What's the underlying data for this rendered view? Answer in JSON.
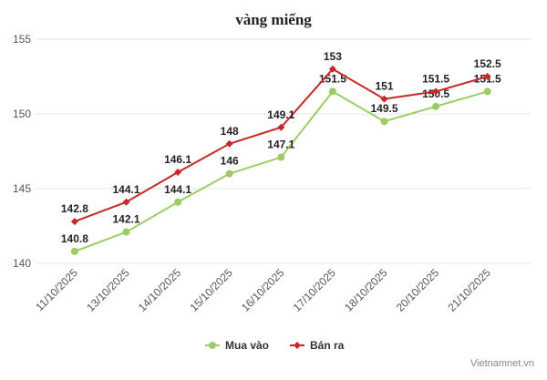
{
  "chart_data": {
    "type": "line",
    "title": "vàng miếng",
    "categories": [
      "11/10/2025",
      "13/10/2025",
      "14/10/2025",
      "15/10/2025",
      "16/10/2025",
      "17/10/2025",
      "18/10/2025",
      "20/10/2025",
      "21/10/2025"
    ],
    "series": [
      {
        "name": "Mua vào",
        "color": "#9ccc65",
        "values": [
          140.8,
          142.1,
          144.1,
          146,
          147.1,
          151.5,
          149.5,
          150.5,
          151.5
        ]
      },
      {
        "name": "Bán ra",
        "color": "#c62828",
        "values": [
          142.8,
          144.1,
          146.1,
          148,
          149.1,
          153,
          151,
          151.5,
          152.5
        ]
      }
    ],
    "ylim": [
      140,
      155
    ],
    "yticks": [
      140,
      145,
      150,
      155
    ],
    "grid": true,
    "legend": "bottom-center",
    "xlabel": "",
    "ylabel": ""
  },
  "credit": "Vietnamnet.vn"
}
